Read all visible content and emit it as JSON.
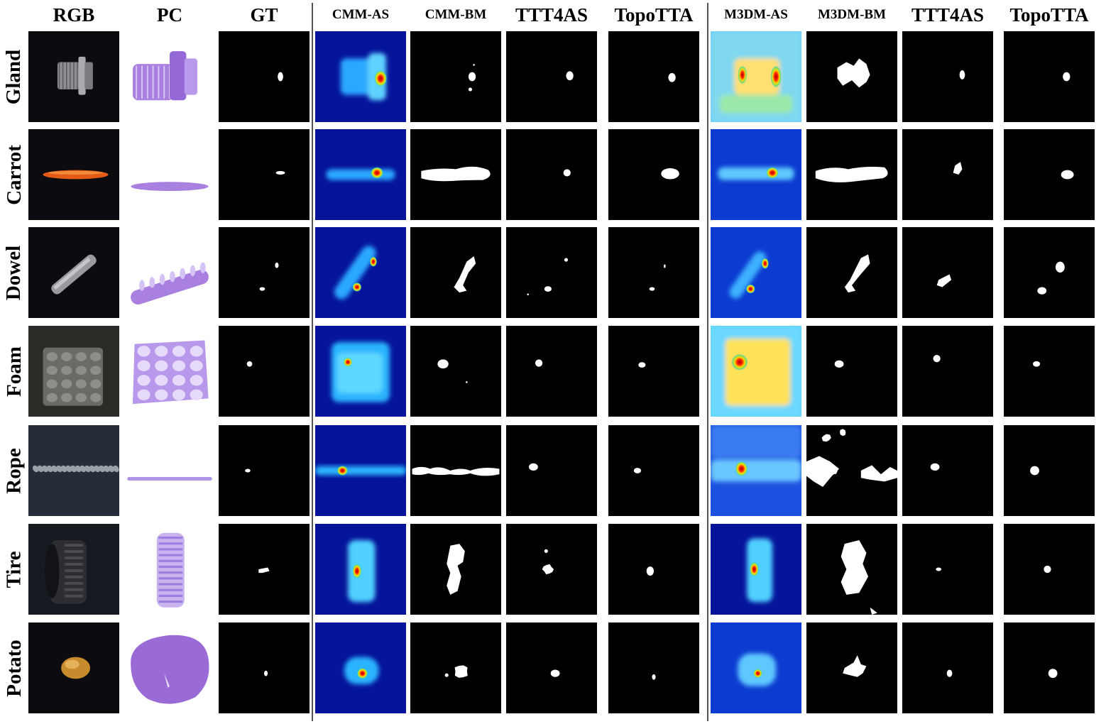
{
  "figure": {
    "columns": [
      "RGB",
      "PC",
      "GT",
      "CMM-AS",
      "CMM-BM",
      "TTT4AS",
      "TopoTTA",
      "M3DM-AS",
      "M3DM-BM",
      "TTT4AS",
      "TopoTTA"
    ],
    "rows": [
      "Gland",
      "Carrot",
      "Dowel",
      "Foam",
      "Rope",
      "Tire",
      "Potato"
    ]
  }
}
